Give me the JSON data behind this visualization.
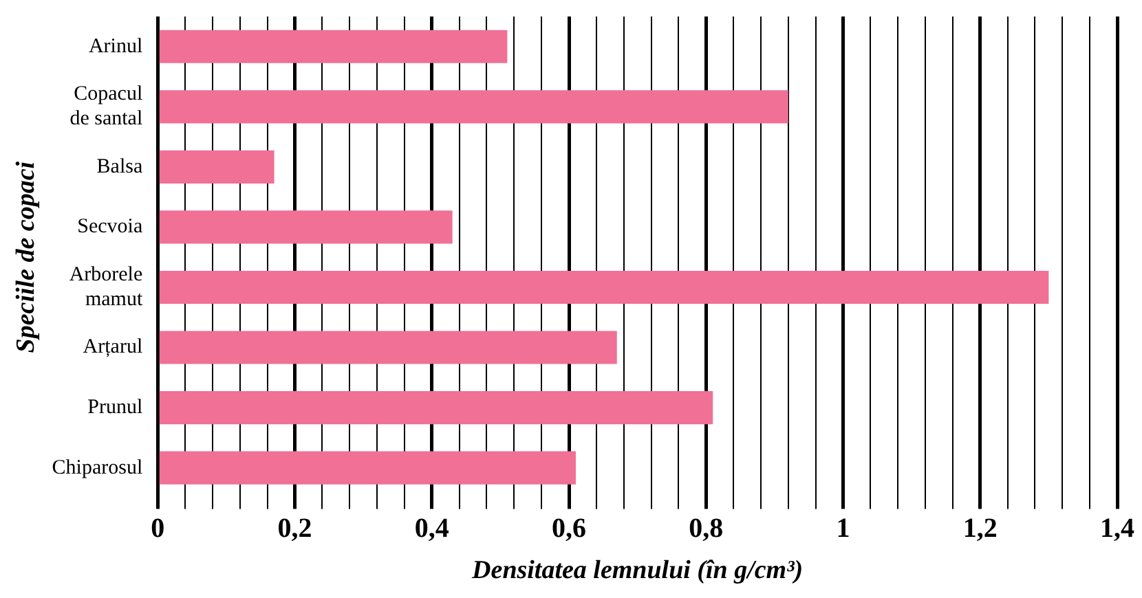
{
  "chart_data": {
    "type": "bar",
    "orientation": "horizontal",
    "xlabel": "Densitatea lemnului (în g/cm³)",
    "ylabel": "Speciile de copaci",
    "categories": [
      "Arinul",
      "Copacul\nde santal",
      "Balsa",
      "Secvoia",
      "Arborele\nmamut",
      "Arțarul",
      "Prunul",
      "Chiparosul"
    ],
    "values": [
      0.51,
      0.92,
      0.17,
      0.43,
      1.3,
      0.67,
      0.81,
      0.61
    ],
    "color": "#f07096",
    "xlim": [
      0,
      1.4
    ],
    "xticks": [
      0,
      {
        "value": 0.04,
        "label": null
      },
      {
        "value": 0.08,
        "label": null
      },
      {
        "value": 0.12,
        "label": null
      },
      {
        "value": 0.16,
        "label": null
      },
      {
        "value": 0.2,
        "label": "0,2"
      },
      {
        "value": 0.24,
        "label": null
      },
      {
        "value": 0.28,
        "label": null
      },
      {
        "value": 0.32,
        "label": null
      },
      {
        "value": 0.36,
        "label": null
      },
      {
        "value": 0.4,
        "label": "0,4"
      },
      {
        "value": 0.44,
        "label": null
      },
      {
        "value": 0.48,
        "label": null
      },
      {
        "value": 0.52,
        "label": null
      },
      {
        "value": 0.56,
        "label": null
      },
      {
        "value": 0.6,
        "label": "0,6"
      },
      {
        "value": 0.64,
        "label": null
      },
      {
        "value": 0.68,
        "label": null
      },
      {
        "value": 0.72,
        "label": null
      },
      {
        "value": 0.76,
        "label": null
      },
      {
        "value": 0.8,
        "label": "0,8"
      },
      {
        "value": 0.84,
        "label": null
      },
      {
        "value": 0.88,
        "label": null
      },
      {
        "value": 0.92,
        "label": null
      },
      {
        "value": 0.96,
        "label": null
      },
      1,
      {
        "value": 1.04,
        "label": null
      },
      {
        "value": 1.08,
        "label": null
      },
      {
        "value": 1.12,
        "label": null
      },
      {
        "value": 1.16,
        "label": null
      },
      {
        "value": 1.2,
        "label": "1,2"
      },
      {
        "value": 1.24,
        "label": null
      },
      {
        "value": 1.28,
        "label": null
      },
      {
        "value": 1.32,
        "label": null
      },
      {
        "value": 1.36,
        "label": null
      },
      {
        "value": 1.4,
        "label": "1,4"
      }
    ],
    "grid": "x",
    "legend": false
  }
}
